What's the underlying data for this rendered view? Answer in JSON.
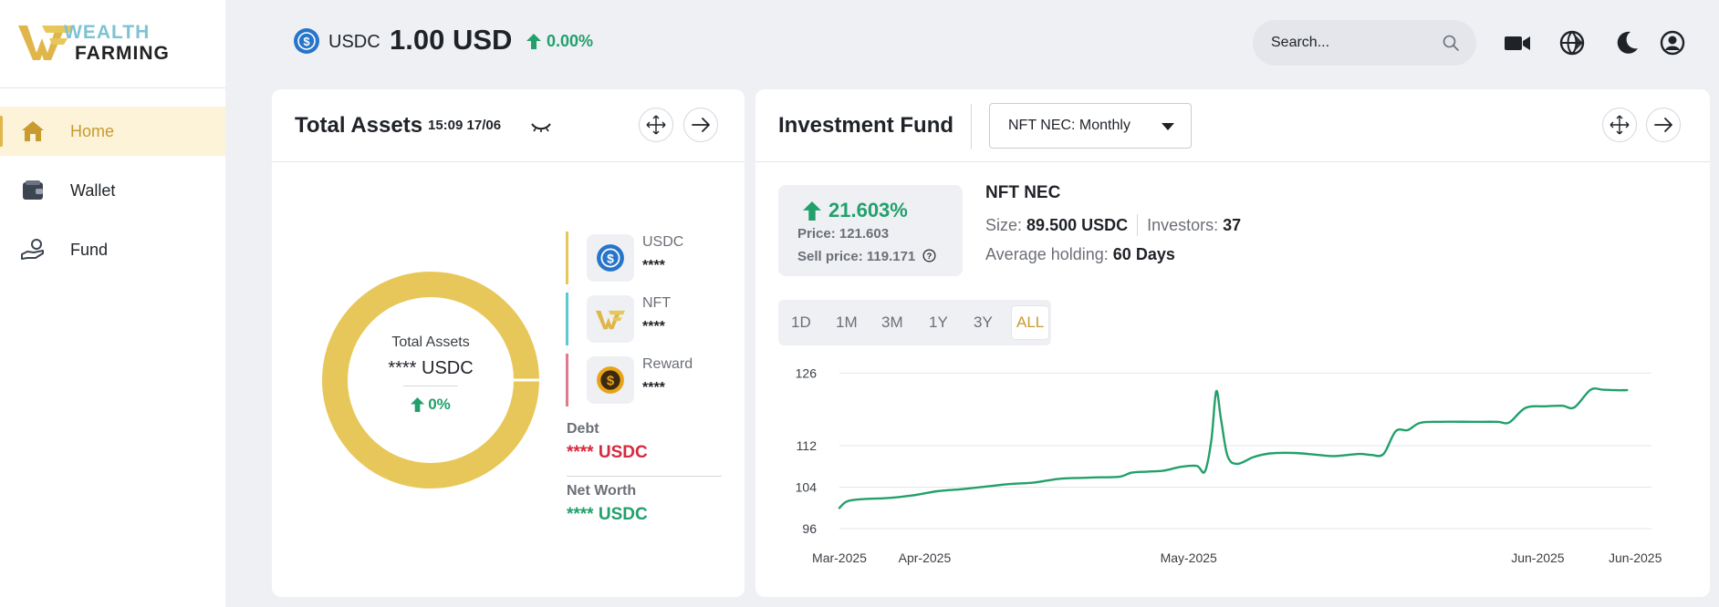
{
  "sidebar": {
    "logo_line1": "WEALTH",
    "logo_line2": "FARMING",
    "items": [
      {
        "label": "Home",
        "icon": "home-icon",
        "active": true
      },
      {
        "label": "Wallet",
        "icon": "wallet-icon",
        "active": false
      },
      {
        "label": "Fund",
        "icon": "hand-coin-icon",
        "active": false
      }
    ]
  },
  "topbar": {
    "coin_name": "USDC",
    "coin_price": "1.00 USD",
    "coin_change": "0.00%",
    "search_placeholder": "Search...",
    "icons": [
      "video-icon",
      "globe-icon",
      "moon-icon",
      "user-icon"
    ]
  },
  "total_assets": {
    "title": "Total Assets",
    "time": "15:09 17/06",
    "donut_label": "Total Assets",
    "donut_value": "**** USDC",
    "donut_change": "0%",
    "legend": [
      {
        "name": "USDC",
        "value": "****",
        "color": "#e8c75a",
        "icon": "usdc-coin-icon"
      },
      {
        "name": "NFT",
        "value": "****",
        "color": "#5cc8d0",
        "icon": "nft-logo-icon"
      },
      {
        "name": "Reward",
        "value": "****",
        "color": "#e07a8e",
        "icon": "dollar-coin-icon"
      }
    ],
    "debt_label": "Debt",
    "debt_value": "**** USDC",
    "networth_label": "Net Worth",
    "networth_value": "**** USDC",
    "colors": {
      "donut": "#e8c75a",
      "debt": "#d6293e",
      "positive": "#22a06b"
    }
  },
  "investment_fund": {
    "title": "Investment Fund",
    "dropdown_value": "NFT NEC: Monthly",
    "change_pct": "21.603%",
    "price_line": "Price: 121.603",
    "sell_price_line": "Sell price: 119.171",
    "fund_name": "NFT NEC",
    "size_label": "Size:",
    "size_value": "89.500 USDC",
    "investors_label": "Investors:",
    "investors_value": "37",
    "holding_label": "Average holding:",
    "holding_value": "60 Days",
    "ranges": [
      "1D",
      "1M",
      "3M",
      "1Y",
      "3Y",
      "ALL"
    ],
    "active_range": "ALL"
  },
  "chart_data": {
    "type": "line",
    "title": "",
    "xlabel": "",
    "ylabel": "",
    "y_ticks": [
      126,
      112,
      104,
      96
    ],
    "x_tick_labels": [
      "Mar-2025",
      "Apr-2025",
      "May-2025",
      "Jun-2025",
      "Jun-2025"
    ],
    "x_tick_positions": [
      0,
      0.105,
      0.43,
      0.86,
      0.98
    ],
    "ylim": [
      96,
      128
    ],
    "grid": true,
    "color": "#22a06b",
    "series": [
      {
        "values": [
          [
            0.0,
            100.0
          ],
          [
            0.01,
            101.3
          ],
          [
            0.03,
            101.7
          ],
          [
            0.06,
            101.9
          ],
          [
            0.09,
            102.4
          ],
          [
            0.12,
            103.2
          ],
          [
            0.15,
            103.6
          ],
          [
            0.18,
            104.1
          ],
          [
            0.21,
            104.6
          ],
          [
            0.24,
            104.9
          ],
          [
            0.27,
            105.6
          ],
          [
            0.3,
            105.8
          ],
          [
            0.32,
            105.9
          ],
          [
            0.345,
            106.0
          ],
          [
            0.36,
            106.8
          ],
          [
            0.38,
            107.0
          ],
          [
            0.4,
            107.2
          ],
          [
            0.42,
            107.9
          ],
          [
            0.44,
            108.1
          ],
          [
            0.45,
            107.0
          ],
          [
            0.458,
            113.0
          ],
          [
            0.464,
            122.5
          ],
          [
            0.47,
            117.0
          ],
          [
            0.478,
            110.0
          ],
          [
            0.49,
            108.5
          ],
          [
            0.51,
            109.8
          ],
          [
            0.53,
            110.5
          ],
          [
            0.56,
            110.6
          ],
          [
            0.59,
            110.2
          ],
          [
            0.61,
            110.0
          ],
          [
            0.64,
            110.4
          ],
          [
            0.655,
            110.2
          ],
          [
            0.67,
            110.4
          ],
          [
            0.685,
            114.8
          ],
          [
            0.7,
            115.0
          ],
          [
            0.715,
            116.4
          ],
          [
            0.74,
            116.6
          ],
          [
            0.78,
            116.6
          ],
          [
            0.81,
            116.6
          ],
          [
            0.825,
            116.5
          ],
          [
            0.845,
            119.3
          ],
          [
            0.87,
            119.6
          ],
          [
            0.89,
            119.7
          ],
          [
            0.905,
            119.4
          ],
          [
            0.925,
            122.8
          ],
          [
            0.94,
            122.8
          ],
          [
            0.955,
            122.7
          ],
          [
            0.97,
            122.7
          ]
        ]
      }
    ]
  }
}
